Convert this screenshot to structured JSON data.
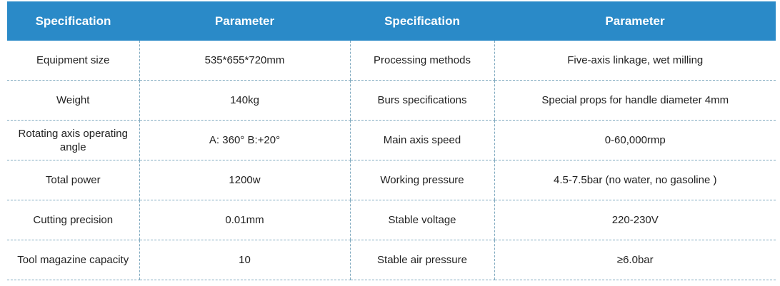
{
  "header": {
    "spec": "Specification",
    "param": "Parameter"
  },
  "colors": {
    "header_bg": "#2a8ac8",
    "divider": "#7fa9bf"
  },
  "rows": [
    {
      "spec1": "Equipment size",
      "param1": "535*655*720mm",
      "spec2": "Processing methods",
      "param2": "Five-axis linkage, wet milling"
    },
    {
      "spec1": "Weight",
      "param1": "140kg",
      "spec2": "Burs specifications",
      "param2": "Special props for handle diameter 4mm"
    },
    {
      "spec1": "Rotating axis operating angle",
      "param1": "A: 360°    B:+20°",
      "spec2": "Main axis speed",
      "param2": "0-60,000rmp"
    },
    {
      "spec1": "Total power",
      "param1": "1200w",
      "spec2": "Working pressure",
      "param2": "4.5-7.5bar (no water, no gasoline )"
    },
    {
      "spec1": "Cutting precision",
      "param1": "0.01mm",
      "spec2": "Stable voltage",
      "param2": "220-230V"
    },
    {
      "spec1": "Tool magazine capacity",
      "param1": "10",
      "spec2": "Stable air pressure",
      "param2": "≥6.0bar"
    }
  ]
}
